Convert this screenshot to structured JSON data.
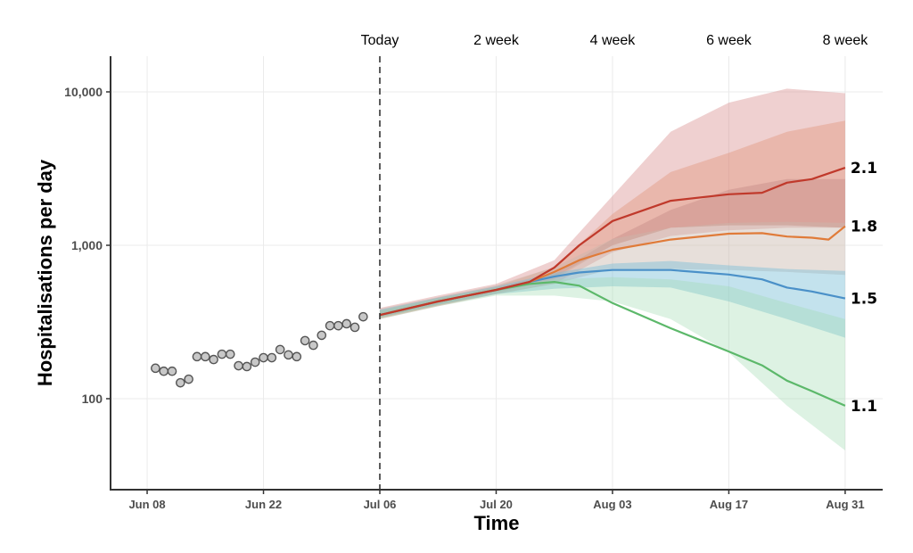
{
  "chart_data": {
    "type": "line",
    "title": "",
    "xlabel": "Time",
    "ylabel": "Hospitalisations per day",
    "y_scale": "log10",
    "ylim": [
      25,
      16000
    ],
    "xlim_days_from_today": [
      -32,
      59
    ],
    "y_ticks": [
      {
        "value": 100,
        "label": "100"
      },
      {
        "value": 1000,
        "label": "1,000"
      },
      {
        "value": 10000,
        "label": "10,000"
      }
    ],
    "x_ticks": [
      {
        "day": -28,
        "label": "Jun 08"
      },
      {
        "day": -14,
        "label": "Jun 22"
      },
      {
        "day": 0,
        "label": "Jul 06"
      },
      {
        "day": 14,
        "label": "Jul 20"
      },
      {
        "day": 28,
        "label": "Aug 03"
      },
      {
        "day": 42,
        "label": "Aug 17"
      },
      {
        "day": 56,
        "label": "Aug 31"
      }
    ],
    "top_markers": [
      {
        "day": 0,
        "label": "Today"
      },
      {
        "day": 14,
        "label": "2 week"
      },
      {
        "day": 28,
        "label": "4 week"
      },
      {
        "day": 42,
        "label": "6 week"
      },
      {
        "day": 56,
        "label": "8 week"
      }
    ],
    "today_day": 0,
    "grid": true,
    "observed": {
      "name": "Observed hospitalisations",
      "days": [
        -27,
        -26,
        -25,
        -24,
        -23,
        -22,
        -21,
        -20,
        -19,
        -18,
        -17,
        -16,
        -15,
        -14,
        -13,
        -12,
        -11,
        -10,
        -9,
        -8,
        -7,
        -6,
        -5,
        -4,
        -3,
        -2
      ],
      "values": [
        158,
        151,
        151,
        127,
        134,
        188,
        188,
        180,
        195,
        195,
        164,
        162,
        173,
        185,
        185,
        209,
        193,
        188,
        239,
        223,
        259,
        299,
        299,
        308,
        292,
        342
      ]
    },
    "band_days": [
      0,
      7,
      14,
      21,
      28,
      35,
      42,
      49,
      56
    ],
    "series": [
      {
        "name": "2.1",
        "label": "2.1",
        "color": "#c0392b",
        "line_days": [
          0,
          7,
          14,
          18,
          21,
          24,
          28,
          35,
          42,
          46,
          49,
          52,
          56
        ],
        "values": [
          351,
          430,
          512,
          577,
          716,
          1000,
          1440,
          1950,
          2150,
          2200,
          2560,
          2700,
          3200
        ],
        "bands": [
          {
            "color": "#d98e8e",
            "opacity": 0.42,
            "lower": [
              330,
              400,
              480,
              560,
              900,
              1150,
              1250,
              1300,
              1300
            ],
            "upper": [
              390,
              470,
              560,
              800,
              2100,
              5500,
              8500,
              10500,
              9800
            ]
          },
          {
            "color": "#e08a6a",
            "opacity": 0.35,
            "lower": [
              335,
              405,
              490,
              600,
              1000,
              1300,
              1350,
              1350,
              1300
            ],
            "upper": [
              375,
              455,
              540,
              720,
              1600,
              3000,
              4000,
              5500,
              6500
            ]
          },
          {
            "color": "#b07070",
            "opacity": 0.28,
            "lower": [
              340,
              410,
              495,
              620,
              1000,
              1300,
              1350,
              1350,
              1300
            ],
            "upper": [
              365,
              445,
              530,
              650,
              1100,
              1700,
              2300,
              2700,
              2700
            ]
          }
        ]
      },
      {
        "name": "1.8",
        "label": "1.8",
        "color": "#e07b39",
        "line_days": [
          0,
          7,
          14,
          18,
          21,
          24,
          28,
          35,
          42,
          46,
          49,
          52,
          54,
          56
        ],
        "values": [
          351,
          430,
          512,
          577,
          670,
          800,
          935,
          1090,
          1190,
          1200,
          1140,
          1120,
          1090,
          1330
        ],
        "bands": [
          {
            "color": "#c9b7ae",
            "opacity": 0.45,
            "lower": [
              335,
              405,
              480,
              560,
              700,
              700,
              690,
              670,
              640
            ],
            "upper": [
              385,
              460,
              550,
              720,
              1100,
              1300,
              1400,
              1420,
              1400
            ]
          }
        ]
      },
      {
        "name": "1.5",
        "label": "1.5",
        "color": "#4a90c8",
        "line_days": [
          0,
          7,
          14,
          18,
          21,
          24,
          28,
          35,
          42,
          46,
          49,
          52,
          56
        ],
        "values": [
          351,
          430,
          512,
          577,
          625,
          665,
          690,
          690,
          645,
          600,
          530,
          500,
          450
        ],
        "bands": [
          {
            "color": "#7bbfd6",
            "opacity": 0.45,
            "lower": [
              340,
              410,
              480,
              520,
              540,
              530,
              430,
              330,
              250
            ],
            "upper": [
              380,
              455,
              540,
              660,
              760,
              790,
              740,
              700,
              680
            ]
          }
        ]
      },
      {
        "name": "1.1",
        "label": "1.1",
        "color": "#5cb86a",
        "line_days": [
          0,
          7,
          14,
          18,
          21,
          24,
          28,
          35,
          42,
          46,
          49,
          52,
          56
        ],
        "values": [
          351,
          430,
          512,
          560,
          577,
          545,
          420,
          288,
          203,
          165,
          131,
          112,
          90
        ],
        "bands": [
          {
            "color": "#9ed9ae",
            "opacity": 0.35,
            "lower": [
              330,
              400,
              470,
              470,
              430,
              330,
              200,
              90,
              46
            ],
            "upper": [
              375,
              450,
              530,
              600,
              620,
              600,
              540,
              420,
              330
            ]
          }
        ]
      }
    ]
  }
}
